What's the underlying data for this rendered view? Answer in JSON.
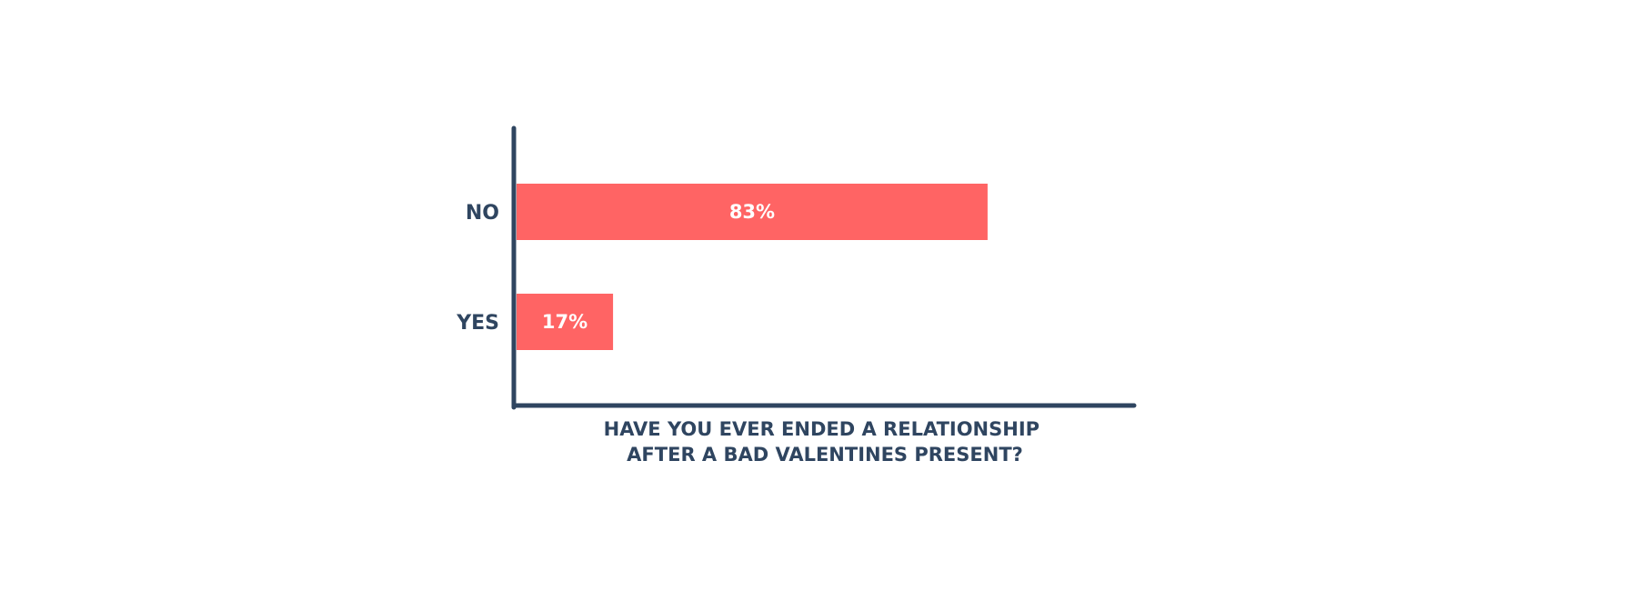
{
  "chart_data": {
    "type": "bar",
    "orientation": "horizontal",
    "categories": [
      "NO",
      "YES"
    ],
    "values": [
      83,
      17
    ],
    "value_labels": [
      "83%",
      "17%"
    ],
    "unit": "%",
    "xlabel": "HAVE YOU EVER ENDED A RELATIONSHIP\nAFTER A BAD VALENTINES PRESENT?",
    "xlabel_lines": [
      "HAVE YOU EVER ENDED A RELATIONSHIP",
      "AFTER A BAD VALENTINES PRESENT?"
    ],
    "ylabel": "",
    "xlim": [
      0,
      100
    ],
    "grid": false,
    "legend": "none",
    "colors": {
      "bar": "#ff6464",
      "axis": "#2f4560",
      "text": "#2f4560",
      "value_text": "#ffffff"
    }
  }
}
